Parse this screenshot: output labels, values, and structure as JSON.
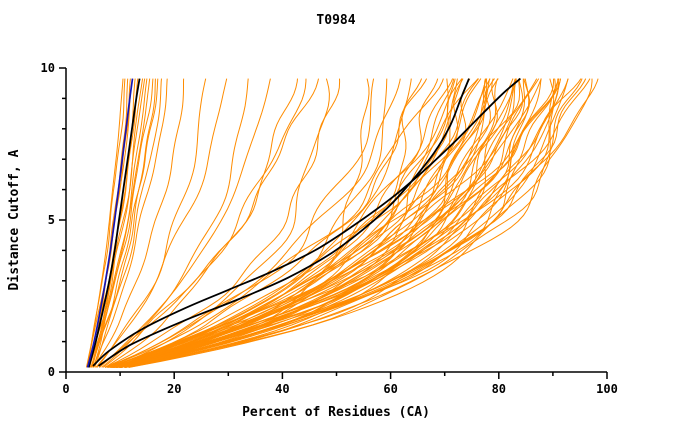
{
  "colors": {
    "background": "#FFFFFF",
    "axis": "#000000",
    "text": "#000000",
    "ensemble": "#FF8C00",
    "highlight": "#000000",
    "reference": "#1515B5"
  },
  "chart_data": {
    "type": "line",
    "title": "T0984",
    "xlabel": "Percent of Residues (CA)",
    "ylabel": "Distance Cutoff, A",
    "xlim": [
      0,
      100
    ],
    "ylim": [
      0,
      10
    ],
    "x_major_ticks": [
      0,
      20,
      40,
      60,
      80,
      100
    ],
    "x_minor_step": 10,
    "y_major_ticks": [
      0,
      5,
      10
    ],
    "y_minor_step": 1,
    "grid": false,
    "legend": false,
    "y_start": 0.15,
    "y_end": 9.65,
    "ensemble_model": "x(y) = x0 + (xt-x0)*(1-exp(-y/tau))/(1-exp(-y_end/tau))",
    "ensemble_params_key": [
      "x0",
      "xt",
      "tau"
    ],
    "ensemble_curves": [
      [
        3.6,
        10.5,
        9
      ],
      [
        3.8,
        11,
        12
      ],
      [
        4.0,
        11.5,
        8
      ],
      [
        4.2,
        12,
        10
      ],
      [
        3.7,
        12.5,
        14
      ],
      [
        4.5,
        13,
        9
      ],
      [
        4.1,
        13.5,
        11
      ],
      [
        3.9,
        14,
        8
      ],
      [
        4.4,
        14.5,
        12
      ],
      [
        4.6,
        15,
        10
      ],
      [
        4.0,
        15.5,
        9
      ],
      [
        4.8,
        16,
        13
      ],
      [
        4.2,
        16.5,
        7
      ],
      [
        4.3,
        17,
        10
      ],
      [
        5.0,
        18,
        11
      ],
      [
        4.7,
        19,
        9
      ],
      [
        4.5,
        22,
        6
      ],
      [
        5.0,
        26,
        5
      ],
      [
        4.8,
        30,
        7
      ],
      [
        5.5,
        34,
        4.5
      ],
      [
        5.2,
        38,
        6
      ],
      [
        6.0,
        42,
        5
      ],
      [
        5.8,
        46,
        8
      ],
      [
        5.4,
        50,
        4
      ],
      [
        6.2,
        48,
        3
      ],
      [
        5.0,
        44,
        6.5
      ],
      [
        6.0,
        55,
        1.8
      ],
      [
        5,
        58,
        4
      ],
      [
        6,
        60,
        3
      ],
      [
        5.5,
        62,
        5
      ],
      [
        6.5,
        64,
        3.5
      ],
      [
        5,
        65,
        2.8
      ],
      [
        6,
        66,
        4.5
      ],
      [
        7,
        68,
        3
      ],
      [
        5.5,
        68,
        5.5
      ],
      [
        6,
        70,
        2.8
      ],
      [
        6.5,
        70,
        4
      ],
      [
        5,
        71,
        3.4
      ],
      [
        7,
        72,
        5
      ],
      [
        5.5,
        72,
        2.6
      ],
      [
        6,
        73,
        3.8
      ],
      [
        6.5,
        74,
        4.6
      ],
      [
        5,
        74,
        3
      ],
      [
        7,
        75,
        2.7
      ],
      [
        5.5,
        75,
        5
      ],
      [
        6,
        76,
        3.5
      ],
      [
        6.5,
        76,
        4.2
      ],
      [
        5,
        77,
        2.9
      ],
      [
        7,
        77,
        3.7
      ],
      [
        5.5,
        78,
        4.8
      ],
      [
        6,
        78,
        2.6
      ],
      [
        6.5,
        79,
        3.3
      ],
      [
        5,
        79,
        4.4
      ],
      [
        7,
        80,
        2.8
      ],
      [
        5.5,
        80,
        3.9
      ],
      [
        6,
        81,
        5.2
      ],
      [
        6.5,
        81,
        3.1
      ],
      [
        5,
        82,
        2.7
      ],
      [
        7,
        82,
        4.1
      ],
      [
        5.5,
        83,
        3.6
      ],
      [
        6,
        83,
        2.9
      ],
      [
        6.5,
        84,
        4.7
      ],
      [
        5,
        84,
        3.2
      ],
      [
        7,
        85,
        2.6
      ],
      [
        5.5,
        85,
        4.3
      ],
      [
        6,
        86,
        3.4
      ],
      [
        6.5,
        86,
        2.8
      ],
      [
        5,
        87,
        3.9
      ],
      [
        7,
        87,
        5
      ],
      [
        5.5,
        88,
        3
      ],
      [
        6,
        88,
        4.5
      ],
      [
        6.5,
        89,
        2.8
      ],
      [
        5,
        89,
        3.6
      ],
      [
        7,
        90,
        4.2
      ],
      [
        5.5,
        90,
        2.9
      ],
      [
        6,
        91,
        3.8
      ],
      [
        6.5,
        91,
        5.4
      ],
      [
        5,
        92,
        3.1
      ],
      [
        7,
        92,
        2.7
      ],
      [
        5.5,
        93,
        4
      ],
      [
        6,
        93,
        3.3
      ],
      [
        6.5,
        94,
        2.9
      ],
      [
        5,
        94,
        4.6
      ],
      [
        7,
        95,
        3.5
      ],
      [
        5.5,
        96,
        3
      ],
      [
        6,
        97,
        3.8
      ],
      [
        6.5,
        95.5,
        4.4
      ]
    ],
    "highlight_curves": [
      [
        [
          4.2,
          0.15
        ],
        [
          5.5,
          1
        ],
        [
          6.8,
          2
        ],
        [
          8,
          3
        ],
        [
          9,
          4
        ],
        [
          9.8,
          5
        ],
        [
          10.6,
          6
        ],
        [
          11.4,
          7
        ],
        [
          12.2,
          8
        ],
        [
          13,
          9
        ],
        [
          13.6,
          9.65
        ]
      ],
      [
        [
          6,
          0.2
        ],
        [
          12,
          0.9
        ],
        [
          22,
          1.7
        ],
        [
          32,
          2.4
        ],
        [
          41,
          3.1
        ],
        [
          49,
          3.9
        ],
        [
          55,
          4.7
        ],
        [
          60,
          5.5
        ],
        [
          64,
          6.3
        ],
        [
          68,
          7.2
        ],
        [
          71,
          8.1
        ],
        [
          73,
          9.0
        ],
        [
          74.5,
          9.65
        ]
      ],
      [
        [
          5,
          0.2
        ],
        [
          8,
          0.7
        ],
        [
          14,
          1.4
        ],
        [
          22,
          2.1
        ],
        [
          30,
          2.7
        ],
        [
          38,
          3.3
        ],
        [
          46,
          4.0
        ],
        [
          53,
          4.8
        ],
        [
          60,
          5.7
        ],
        [
          66,
          6.6
        ],
        [
          72,
          7.6
        ],
        [
          77,
          8.5
        ],
        [
          81,
          9.2
        ],
        [
          84,
          9.65
        ]
      ]
    ],
    "reference_curve": [
      [
        4.0,
        0.15
      ],
      [
        5.2,
        1
      ],
      [
        6.3,
        2
      ],
      [
        7.3,
        3
      ],
      [
        8.2,
        4
      ],
      [
        9.0,
        5
      ],
      [
        9.7,
        6
      ],
      [
        10.4,
        7
      ],
      [
        11.1,
        8
      ],
      [
        11.8,
        9
      ],
      [
        12.3,
        9.65
      ]
    ]
  }
}
